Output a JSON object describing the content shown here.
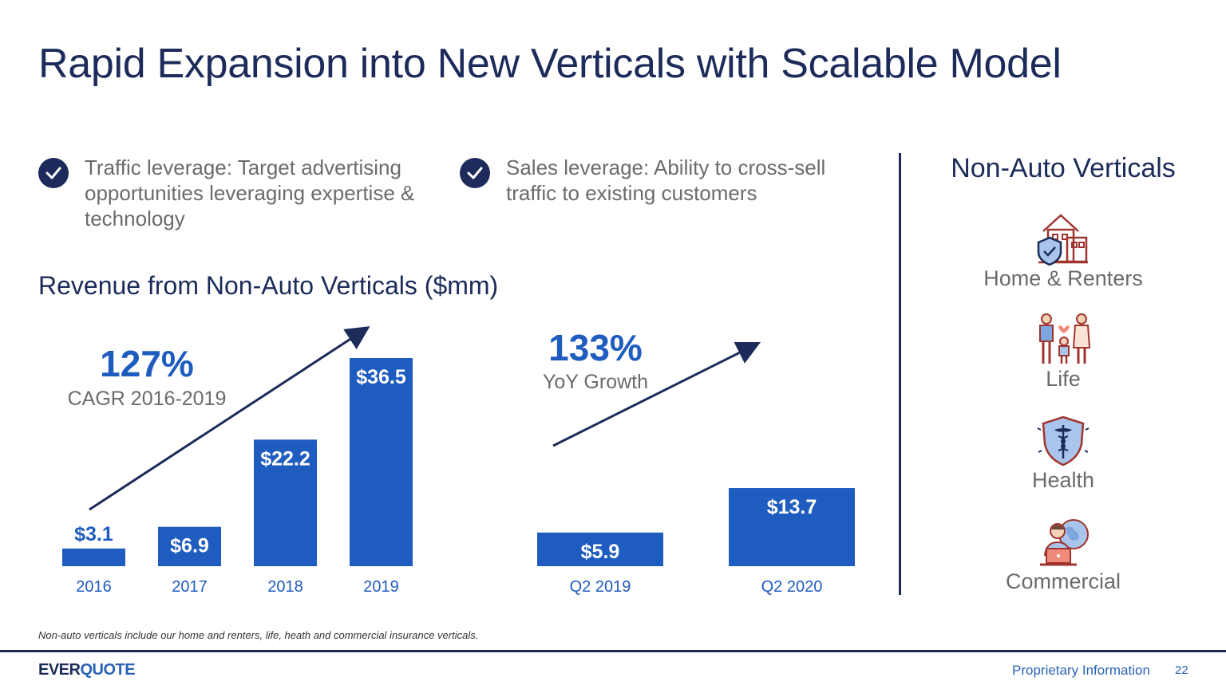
{
  "title": "Rapid Expansion into New Verticals with Scalable Model",
  "bullets": [
    {
      "text": "Traffic leverage: Target advertising opportunities leveraging expertise & technology"
    },
    {
      "text": "Sales leverage: Ability to cross-sell traffic to existing customers"
    }
  ],
  "chart_heading": "Revenue from Non-Auto Verticals ($mm)",
  "chart_data": [
    {
      "type": "bar",
      "categories": [
        "2016",
        "2017",
        "2018",
        "2019"
      ],
      "values": [
        3.1,
        6.9,
        22.2,
        36.5
      ],
      "value_labels": [
        "$3.1",
        "$6.9",
        "$22.2",
        "$36.5"
      ],
      "annotation": {
        "value": "127%",
        "caption": "CAGR 2016-2019"
      },
      "bar_color": "#1f5cbf"
    },
    {
      "type": "bar",
      "categories": [
        "Q2 2019",
        "Q2 2020"
      ],
      "values": [
        5.9,
        13.7
      ],
      "value_labels": [
        "$5.9",
        "$13.7"
      ],
      "annotation": {
        "value": "133%",
        "caption": "YoY Growth"
      },
      "bar_color": "#1f5cbf"
    }
  ],
  "verticals": {
    "title": "Non-Auto Verticals",
    "items": [
      {
        "label": "Home & Renters",
        "icon": "home-shield-icon"
      },
      {
        "label": "Life",
        "icon": "family-icon"
      },
      {
        "label": "Health",
        "icon": "caduceus-shield-icon"
      },
      {
        "label": "Commercial",
        "icon": "business-laptop-globe-icon"
      }
    ]
  },
  "footnote": "Non-auto verticals include our home and renters, life, heath and commercial insurance verticals.",
  "footer": {
    "logo_part1": "EVER",
    "logo_part2": "QUOTE",
    "proprietary": "Proprietary Information",
    "page_number": "22"
  },
  "colors": {
    "navy": "#1c2b5a",
    "bar": "#1f5cbf",
    "accent": "#2a63b7",
    "gray_text": "#6b6b6b"
  }
}
